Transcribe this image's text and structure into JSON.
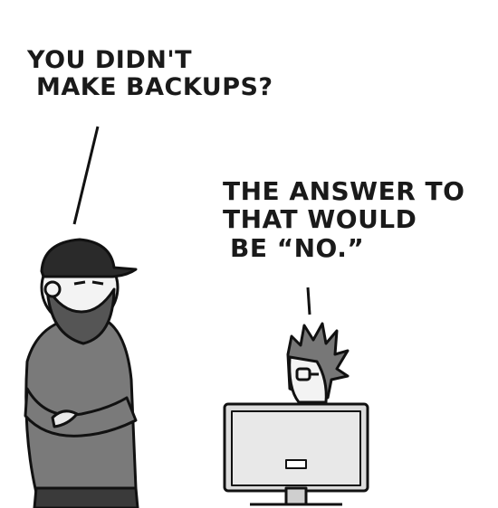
{
  "comic": {
    "bearded_man_speech": [
      "YOU DIDN'T",
      "MAKE BACKUPS?"
    ],
    "spiky_hair_speech": [
      "THE ANSWER TO",
      "THAT WOULD",
      "BE “NO.”"
    ]
  }
}
